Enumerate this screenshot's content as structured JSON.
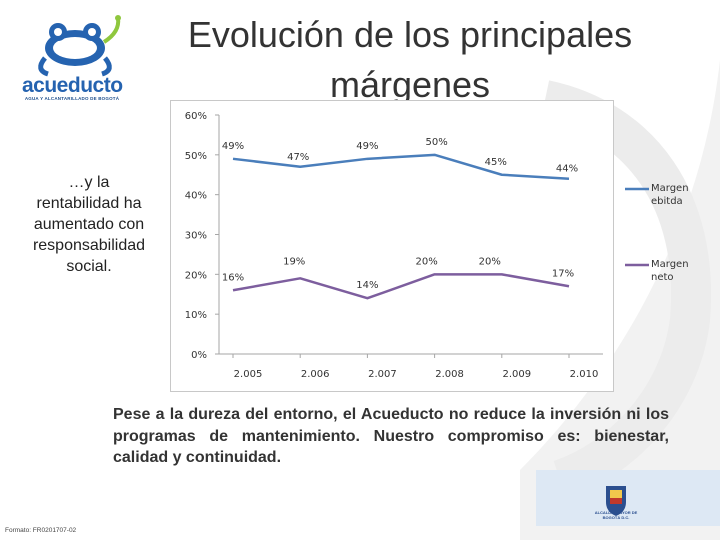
{
  "header": {
    "title_line1": "Evolución de los principales",
    "title_line2": "márgenes"
  },
  "logo": {
    "wordmark": "acueducto",
    "tagline": "AGUA Y ALCANTARILLADO DE BOGOTÁ",
    "colors": {
      "primary": "#2563b0",
      "accent": "#8fc73e"
    }
  },
  "side_text": {
    "line1": "…y la",
    "line2": "rentabilidad ha",
    "line3": "aumentado con",
    "line4": "responsabilidad",
    "line5": "social."
  },
  "paragraph": {
    "text": "Pese a la dureza del entorno, el Acueducto no reduce la inversión ni los programas de mantenimiento. Nuestro compromiso es: bienestar, calidad y continuidad."
  },
  "footer": {
    "code": "Formato: FR0201707-02",
    "alcaldia_label": "ALCALDÍA MAYOR DE BOGOTÁ D.C."
  },
  "chart_data": {
    "type": "line",
    "categories": [
      "2.005",
      "2.006",
      "2.007",
      "2.008",
      "2.009",
      "2.010"
    ],
    "y_ticks": [
      "0%",
      "10%",
      "20%",
      "30%",
      "40%",
      "50%",
      "60%"
    ],
    "ylim": [
      0,
      60
    ],
    "grid": false,
    "legend_position": "right",
    "series": [
      {
        "name_line1": "Margen",
        "name_line2": "ebitda",
        "values": [
          49,
          47,
          49,
          50,
          45,
          44
        ],
        "labels": [
          "49%",
          "47%",
          "49%",
          "50%",
          "45%",
          "44%"
        ],
        "color": "#4a7ebb"
      },
      {
        "name_line1": "Margen",
        "name_line2": "neto",
        "values": [
          16,
          19,
          14,
          20,
          20,
          17
        ],
        "labels": [
          "16%",
          "19%",
          "14%",
          "20%",
          "20%",
          "17%"
        ],
        "color": "#7d5e9e"
      }
    ]
  }
}
